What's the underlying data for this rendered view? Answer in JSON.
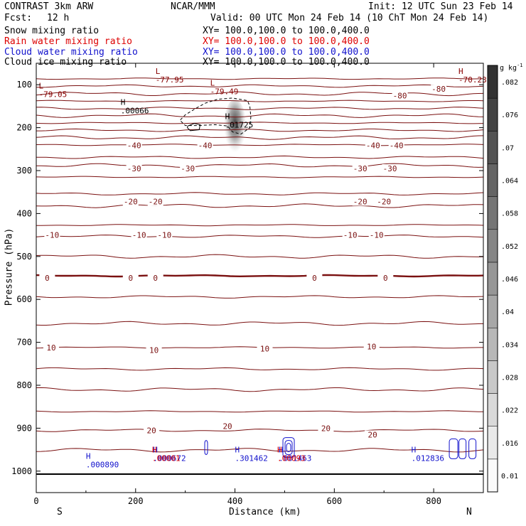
{
  "header": {
    "project": "CONTRAST  3km ARW",
    "org": "NCAR/MMM",
    "init": "Init: 12 UTC Sun 23 Feb 14",
    "fcst_label": "Fcst:",
    "fcst_value": "12 h",
    "valid": "Valid: 00 UTC Mon 24 Feb 14 (10 ChT Mon 24 Feb 14)"
  },
  "fields": [
    {
      "name": "Snow mixing ratio",
      "xy": "XY= 100.0,100.0 to 100.0,400.0",
      "color": "#000000"
    },
    {
      "name": "Rain water mixing ratio",
      "xy": "XY= 100.0,100.0 to 100.0,400.0",
      "color": "#dd0000"
    },
    {
      "name": "Cloud water mixing ratio",
      "xy": "XY= 100.0,100.0 to 100.0,400.0",
      "color": "#1111cc"
    },
    {
      "name": "Cloud ice mixing ratio",
      "xy": "XY= 100.0,100.0 to 100.0,400.0",
      "color": "#000000"
    }
  ],
  "chart_data": {
    "type": "contour",
    "xlabel": "Distance (km)",
    "ylabel": "Pressure (hPa)",
    "xlim": [
      0,
      900
    ],
    "ylim": [
      1050,
      50
    ],
    "xticks": [
      "0",
      "200",
      "400",
      "600",
      "800"
    ],
    "yticks": [
      "100",
      "200",
      "300",
      "400",
      "500",
      "600",
      "700",
      "800",
      "900",
      "1000"
    ],
    "x_end_labels": {
      "left": "S",
      "right": "N"
    },
    "colorbar": {
      "unit": "g kg",
      "unit_exp": "-1",
      "ticks": [
        "0.01",
        ".016",
        ".022",
        ".028",
        ".034",
        ".04",
        ".046",
        ".052",
        ".058",
        ".064",
        ".07",
        ".076",
        ".082"
      ]
    },
    "temperature_contours": [
      {
        "p": 86,
        "label": ""
      },
      {
        "p": 103,
        "label": "-80"
      },
      {
        "p": 121,
        "label": ""
      },
      {
        "p": 138,
        "label": ""
      },
      {
        "p": 155,
        "label": ""
      },
      {
        "p": 172,
        "label": ""
      },
      {
        "p": 189,
        "label": ""
      },
      {
        "p": 206,
        "label": ""
      },
      {
        "p": 223,
        "label": ""
      },
      {
        "p": 240,
        "label": "-40"
      },
      {
        "p": 269,
        "label": ""
      },
      {
        "p": 288,
        "label": "-30"
      },
      {
        "p": 315,
        "label": ""
      },
      {
        "p": 354,
        "label": "-20"
      },
      {
        "p": 382,
        "label": ""
      },
      {
        "p": 427,
        "label": "-10"
      },
      {
        "p": 453,
        "label": ""
      },
      {
        "p": 500,
        "label": ""
      },
      {
        "p": 545,
        "label": "0",
        "bold": true
      },
      {
        "p": 594,
        "label": ""
      },
      {
        "p": 656,
        "label": ""
      },
      {
        "p": 712,
        "label": "10"
      },
      {
        "p": 762,
        "label": ""
      },
      {
        "p": 810,
        "label": ""
      },
      {
        "p": 861,
        "label": ""
      },
      {
        "p": 905,
        "label": "20"
      },
      {
        "p": 951,
        "label": ""
      },
      {
        "p": 1007,
        "label": "",
        "ground": true
      }
    ],
    "contour_labels": [
      {
        "text": "-80",
        "x": 810,
        "p": 110
      },
      {
        "text": "-80",
        "x": 732,
        "p": 125
      },
      {
        "text": "-40",
        "x": 197,
        "p": 241
      },
      {
        "text": "-40",
        "x": 340,
        "p": 241
      },
      {
        "text": "-40",
        "x": 678,
        "p": 241
      },
      {
        "text": "-40",
        "x": 725,
        "p": 241
      },
      {
        "text": "-30",
        "x": 197,
        "p": 295
      },
      {
        "text": "-30",
        "x": 305,
        "p": 295
      },
      {
        "text": "-30",
        "x": 652,
        "p": 295
      },
      {
        "text": "-30",
        "x": 712,
        "p": 295
      },
      {
        "text": "-20",
        "x": 190,
        "p": 372
      },
      {
        "text": "-20",
        "x": 240,
        "p": 372
      },
      {
        "text": "-20",
        "x": 652,
        "p": 372
      },
      {
        "text": "-20",
        "x": 700,
        "p": 372
      },
      {
        "text": "-10",
        "x": 32,
        "p": 450
      },
      {
        "text": "-10",
        "x": 207,
        "p": 450
      },
      {
        "text": "-10",
        "x": 258,
        "p": 450
      },
      {
        "text": "-10",
        "x": 632,
        "p": 450
      },
      {
        "text": "-10",
        "x": 685,
        "p": 450
      },
      {
        "text": "0",
        "x": 22,
        "p": 550
      },
      {
        "text": "0",
        "x": 190,
        "p": 550
      },
      {
        "text": "0",
        "x": 240,
        "p": 550
      },
      {
        "text": "0",
        "x": 560,
        "p": 550
      },
      {
        "text": "0",
        "x": 703,
        "p": 550
      },
      {
        "text": "10",
        "x": 30,
        "p": 712
      },
      {
        "text": "10",
        "x": 237,
        "p": 718
      },
      {
        "text": "10",
        "x": 460,
        "p": 715
      },
      {
        "text": "10",
        "x": 675,
        "p": 710
      },
      {
        "text": "20",
        "x": 232,
        "p": 905
      },
      {
        "text": "20",
        "x": 385,
        "p": 895
      },
      {
        "text": "20",
        "x": 583,
        "p": 900
      },
      {
        "text": "20",
        "x": 677,
        "p": 915
      }
    ],
    "extrema": [
      {
        "mark": "L",
        "value": "-77.95",
        "x": 240,
        "p": 88,
        "color": "#880000"
      },
      {
        "mark": "L",
        "value": "-79.49",
        "x": 350,
        "p": 115,
        "color": "#880000"
      },
      {
        "mark": "L",
        "value": "-79.05",
        "x": 5,
        "p": 122,
        "color": "#880000"
      },
      {
        "mark": "H",
        "value": "-70.23",
        "x": 850,
        "p": 88,
        "color": "#880000"
      },
      {
        "mark": "H",
        "value": ".00066",
        "x": 170,
        "p": 160,
        "color": "#000000"
      },
      {
        "mark": "H",
        "value": ".01725",
        "x": 380,
        "p": 193,
        "color": "#000000"
      },
      {
        "mark": "H",
        "value": ".000890",
        "x": 100,
        "p": 985,
        "color": "#1111cc"
      },
      {
        "mark": "H",
        "value": ".301462",
        "x": 400,
        "p": 970,
        "color": "#1111cc"
      },
      {
        "mark": "H",
        "value": ".012836",
        "x": 755,
        "p": 970,
        "color": "#1111cc"
      },
      {
        "mark": "H",
        "value": ".000672",
        "x": 235,
        "p": 970,
        "color": "#1111cc"
      },
      {
        "mark": "H",
        "value": ".00001",
        "x": 233,
        "p": 970,
        "color": "#dd0000"
      },
      {
        "mark": "H",
        "value": ".001463",
        "x": 488,
        "p": 970,
        "color": "#1111cc"
      },
      {
        "mark": "H",
        "value": ".00093",
        "x": 485,
        "p": 970,
        "color": "#dd0000"
      }
    ],
    "snow_shading": {
      "x": 400,
      "p_top": 150,
      "p_bottom": 255
    },
    "cloud_ice_outline": [
      [
        290,
        182
      ],
      [
        300,
        170
      ],
      [
        320,
        156
      ],
      [
        340,
        143
      ],
      [
        365,
        134
      ],
      [
        395,
        131
      ],
      [
        425,
        137
      ],
      [
        430,
        150
      ],
      [
        432,
        175
      ],
      [
        430,
        200
      ],
      [
        412,
        215
      ],
      [
        395,
        210
      ],
      [
        385,
        196
      ],
      [
        360,
        193
      ],
      [
        325,
        195
      ],
      [
        300,
        195
      ],
      [
        292,
        186
      ]
    ],
    "cloud_ice_small": [
      [
        305,
        196
      ],
      [
        318,
        190
      ],
      [
        330,
        193
      ],
      [
        328,
        205
      ],
      [
        310,
        207
      ],
      [
        304,
        200
      ]
    ]
  }
}
